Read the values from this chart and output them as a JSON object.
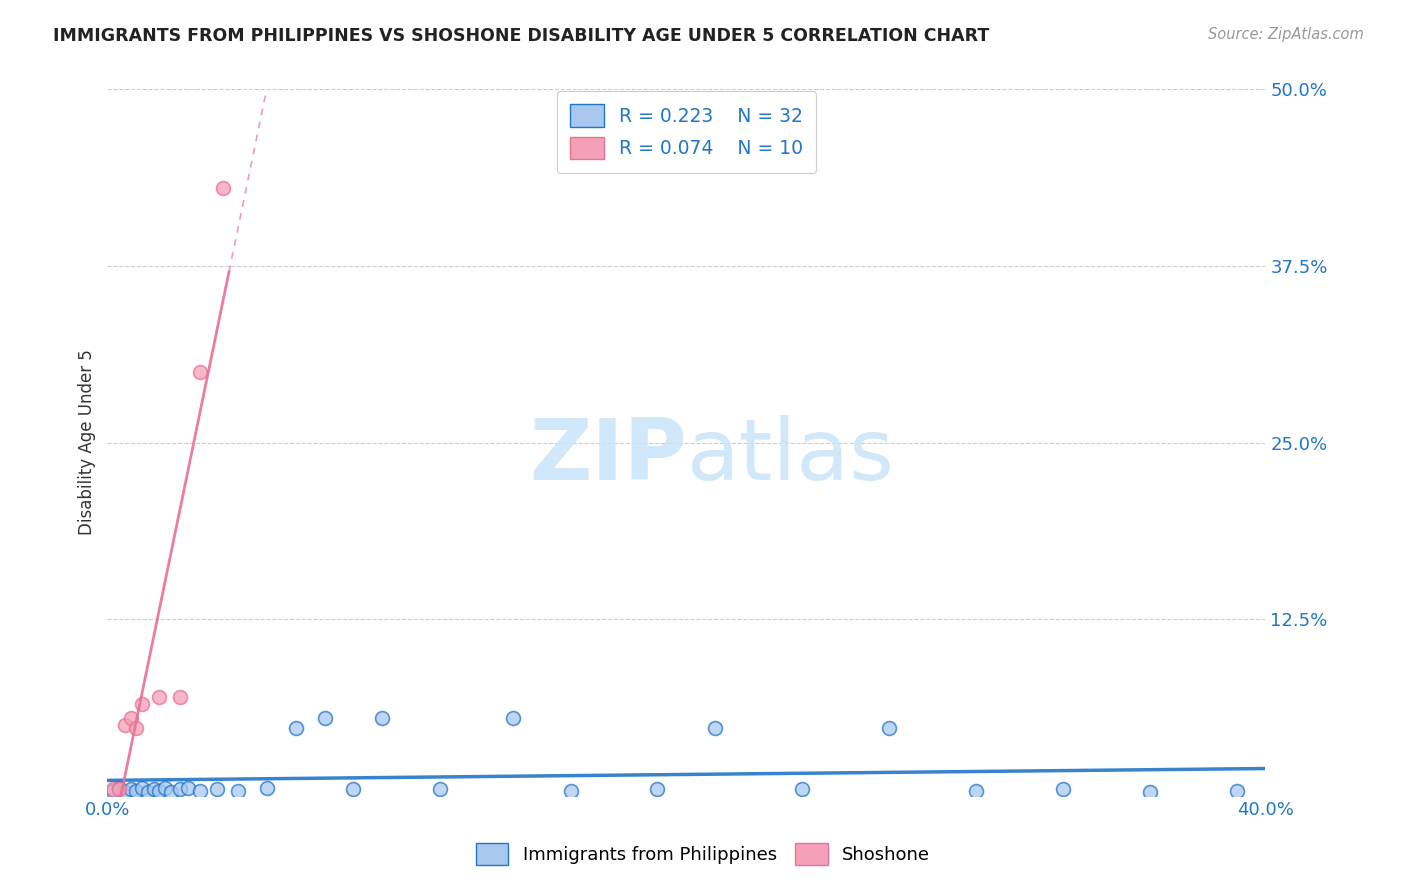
{
  "title": "IMMIGRANTS FROM PHILIPPINES VS SHOSHONE DISABILITY AGE UNDER 5 CORRELATION CHART",
  "source": "Source: ZipAtlas.com",
  "ylabel": "Disability Age Under 5",
  "xlim": [
    0.0,
    0.4
  ],
  "ylim": [
    0.0,
    0.5
  ],
  "ytick_positions": [
    0.125,
    0.25,
    0.375,
    0.5
  ],
  "xtick_positions": [
    0.0,
    0.4
  ],
  "grid_color": "#cccccc",
  "background_color": "#ffffff",
  "legend_label1": "Immigrants from Philippines",
  "legend_label2": "Shoshone",
  "R1": "0.223",
  "N1": "32",
  "R2": "0.074",
  "N2": "10",
  "color1": "#a8c8f0",
  "color2": "#f4a0b8",
  "trendline1_color": "#2176c7",
  "trendline2_color": "#e87090",
  "watermark_color": "#c8e4f8",
  "blue_scatter_x": [
    0.002,
    0.004,
    0.006,
    0.008,
    0.01,
    0.012,
    0.014,
    0.016,
    0.018,
    0.02,
    0.022,
    0.025,
    0.028,
    0.032,
    0.038,
    0.045,
    0.055,
    0.065,
    0.075,
    0.085,
    0.095,
    0.115,
    0.14,
    0.16,
    0.19,
    0.21,
    0.24,
    0.27,
    0.3,
    0.33,
    0.36,
    0.39
  ],
  "blue_scatter_y": [
    0.004,
    0.006,
    0.003,
    0.005,
    0.004,
    0.006,
    0.003,
    0.005,
    0.004,
    0.006,
    0.003,
    0.005,
    0.006,
    0.004,
    0.005,
    0.004,
    0.006,
    0.048,
    0.055,
    0.005,
    0.055,
    0.005,
    0.055,
    0.004,
    0.005,
    0.048,
    0.005,
    0.048,
    0.004,
    0.005,
    0.003,
    0.004
  ],
  "pink_scatter_x": [
    0.002,
    0.004,
    0.006,
    0.008,
    0.01,
    0.012,
    0.018,
    0.025,
    0.032,
    0.04
  ],
  "pink_scatter_y": [
    0.005,
    0.005,
    0.05,
    0.055,
    0.048,
    0.065,
    0.07,
    0.07,
    0.3,
    0.43
  ],
  "marker_size": 100
}
